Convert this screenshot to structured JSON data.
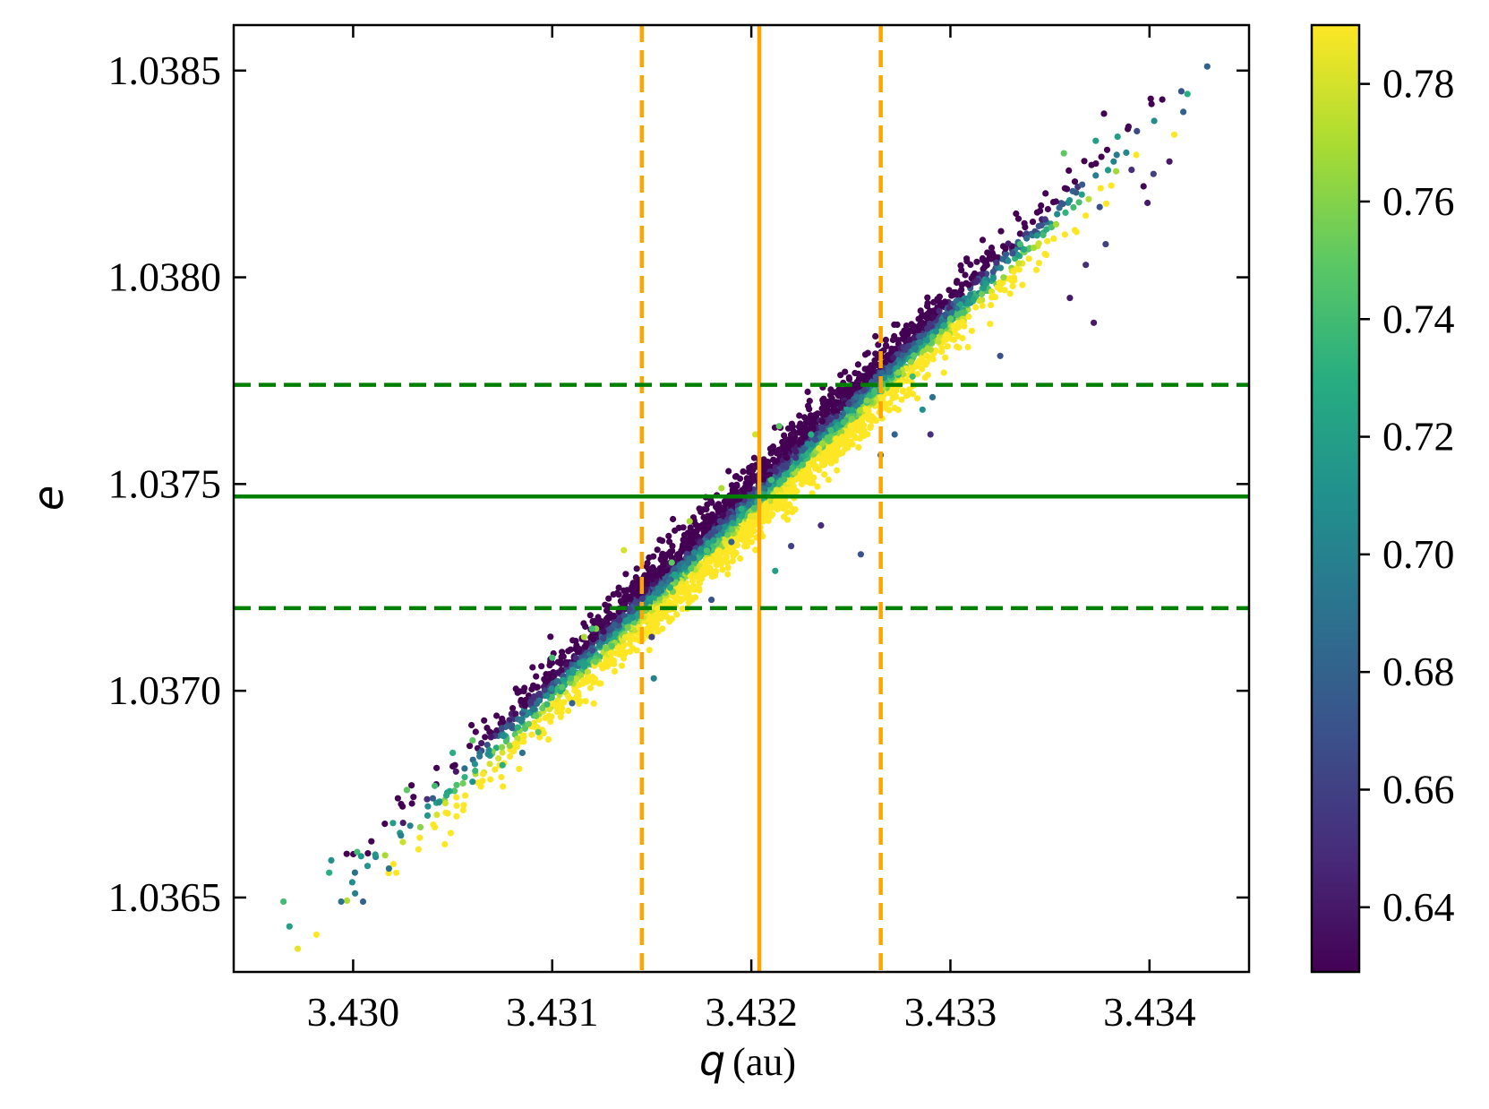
{
  "chart_data": {
    "type": "scatter",
    "title": "",
    "xlabel": {
      "variable": "q",
      "unit": "(au)"
    },
    "ylabel": {
      "variable": "e",
      "unit": ""
    },
    "xlim": [
      3.4294,
      3.4345
    ],
    "ylim": [
      1.03632,
      1.03861
    ],
    "x_ticks": [
      3.43,
      3.431,
      3.432,
      3.433,
      3.434
    ],
    "x_tick_labels": [
      "3.430",
      "3.431",
      "3.432",
      "3.433",
      "3.434"
    ],
    "y_ticks": [
      1.0365,
      1.037,
      1.0375,
      1.038,
      1.0385
    ],
    "y_tick_labels": [
      "1.0365",
      "1.0370",
      "1.0375",
      "1.0380",
      "1.0385"
    ],
    "grid": false,
    "colorbar": {
      "colormap": "viridis",
      "range": [
        0.629,
        0.79
      ],
      "ticks": [
        0.64,
        0.66,
        0.68,
        0.7,
        0.72,
        0.74,
        0.76,
        0.78
      ],
      "tick_labels": [
        "0.64",
        "0.66",
        "0.68",
        "0.70",
        "0.72",
        "0.74",
        "0.76",
        "0.78"
      ]
    },
    "reference_lines": {
      "vertical": [
        {
          "x": 3.43145,
          "style": "dashed",
          "color": "#ffa500"
        },
        {
          "x": 3.43204,
          "style": "solid",
          "color": "#ffa500"
        },
        {
          "x": 3.43265,
          "style": "dashed",
          "color": "#ffa500"
        }
      ],
      "horizontal": [
        {
          "y": 1.03774,
          "style": "dashed",
          "color": "#008000"
        },
        {
          "y": 1.03747,
          "style": "solid",
          "color": "#008000"
        },
        {
          "y": 1.0372,
          "style": "dashed",
          "color": "#008000"
        }
      ]
    },
    "points": [
      [
        3.42965,
        1.03649,
        0.74
      ],
      [
        3.42968,
        1.03643,
        0.72
      ],
      [
        3.42988,
        1.03656,
        0.73
      ],
      [
        3.42989,
        1.03659,
        0.71
      ],
      [
        3.42994,
        1.03649,
        0.69
      ],
      [
        3.43001,
        1.03651,
        0.7
      ],
      [
        3.43002,
        1.03661,
        0.74
      ],
      [
        3.43004,
        1.0366,
        0.71
      ],
      [
        3.43005,
        1.03649,
        0.68
      ],
      [
        3.43018,
        1.03657,
        0.69
      ],
      [
        3.4302,
        1.03668,
        0.72
      ],
      [
        3.43024,
        1.03665,
        0.7
      ],
      [
        3.43027,
        1.03676,
        0.75
      ],
      [
        3.43041,
        1.03677,
        0.74
      ],
      [
        3.43043,
        1.03673,
        0.71
      ],
      [
        3.4306,
        1.03678,
        0.71
      ],
      [
        3.43075,
        1.03682,
        0.73
      ],
      [
        3.43093,
        1.0369,
        0.75
      ],
      [
        3.43116,
        1.03713,
        0.77
      ],
      [
        3.43122,
        1.03715,
        0.76
      ],
      [
        3.43136,
        1.03734,
        0.78
      ],
      [
        3.43151,
        1.03703,
        0.7
      ],
      [
        3.43169,
        1.03741,
        0.77
      ],
      [
        3.43185,
        1.03749,
        0.77
      ],
      [
        3.43202,
        1.03762,
        0.78
      ],
      [
        3.43214,
        1.03764,
        0.75
      ],
      [
        3.43212,
        1.03729,
        0.72
      ],
      [
        3.43274,
        1.03777,
        0.76
      ],
      [
        3.43272,
        1.03762,
        0.68
      ],
      [
        3.43281,
        1.03776,
        0.74
      ],
      [
        3.43291,
        1.03771,
        0.69
      ],
      [
        3.43286,
        1.03768,
        0.71
      ],
      [
        3.433,
        1.0379,
        0.75
      ],
      [
        3.43335,
        1.03808,
        0.74
      ],
      [
        3.43357,
        1.0383,
        0.75
      ],
      [
        3.43366,
        1.0382,
        0.72
      ],
      [
        3.43373,
        1.03833,
        0.72
      ],
      [
        3.43382,
        1.03828,
        0.7
      ],
      [
        3.43384,
        1.03834,
        0.72
      ],
      [
        3.43391,
        1.03826,
        0.65
      ],
      [
        3.43397,
        1.03822,
        0.63
      ],
      [
        3.43399,
        1.03818,
        0.64
      ],
      [
        3.43402,
        1.03825,
        0.66
      ],
      [
        3.4341,
        1.03828,
        0.64
      ],
      [
        3.43375,
        1.03817,
        0.67
      ],
      [
        3.4336,
        1.03795,
        0.64
      ],
      [
        3.43368,
        1.03803,
        0.65
      ],
      [
        3.43378,
        1.03808,
        0.66
      ],
      [
        3.43372,
        1.03789,
        0.64
      ],
      [
        3.43416,
        1.03845,
        0.67
      ],
      [
        3.43417,
        1.0384,
        0.68
      ],
      [
        3.43429,
        1.03851,
        0.68
      ],
      [
        3.4322,
        1.03735,
        0.66
      ],
      [
        3.43235,
        1.0374,
        0.65
      ],
      [
        3.4319,
        1.03736,
        0.68
      ],
      [
        3.4329,
        1.03762,
        0.65
      ],
      [
        3.4315,
        1.03713,
        0.66
      ],
      [
        3.4311,
        1.03697,
        0.68
      ],
      [
        3.43085,
        1.03685,
        0.69
      ],
      [
        3.43255,
        1.03733,
        0.67
      ],
      [
        3.43325,
        1.03781,
        0.67
      ],
      [
        3.43265,
        1.03757,
        0.68
      ],
      [
        3.4318,
        1.03722,
        0.67
      ],
      [
        3.43195,
        1.03744,
        0.73
      ],
      [
        3.4321,
        1.03751,
        0.74
      ],
      [
        3.4316,
        1.03731,
        0.75
      ],
      [
        3.4323,
        1.03762,
        0.73
      ],
      [
        3.4324,
        1.03763,
        0.74
      ],
      [
        3.431,
        1.03708,
        0.74
      ],
      [
        3.4306,
        1.03688,
        0.75
      ],
      [
        3.4312,
        1.03715,
        0.74
      ],
      [
        3.4305,
        1.03685,
        0.73
      ]
    ],
    "cloud": {
      "x_center": 3.43204,
      "y_center": 1.03747,
      "slope_e_per_q": 0.4543,
      "x_sd": 0.00067,
      "across_sd": 4.2e-05,
      "count": 4200,
      "color_center": 0.71,
      "color_gradient_per_e": -2200
    }
  },
  "colors": {
    "vertical_lines": "#ffa500",
    "horizontal_lines": "#008000",
    "axis": "#000000"
  }
}
